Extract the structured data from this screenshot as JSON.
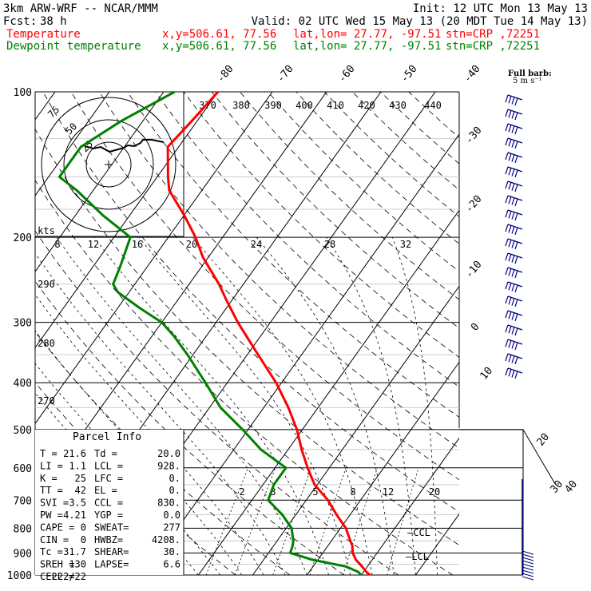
{
  "header": {
    "model": "3km ARW-WRF -- NCAR/MMM",
    "init": "Init: 12 UTC Mon 13 May 13",
    "fcst_label": "Fcst:",
    "fcst_value": "38 h",
    "valid": "Valid: 02 UTC Wed 15 May 13 (20 MDT Tue 14 May 13)",
    "temp_line": {
      "label": "Temperature",
      "xy": "x,y=506.61, 77.56",
      "latlon": "lat,lon= 27.77, -97.51",
      "stn": "stn=CRP ,72251"
    },
    "dew_line": {
      "label": "Dewpoint temperature",
      "xy": "x,y=506.61, 77.56",
      "latlon": "lat,lon= 27.77, -97.51",
      "stn": "stn=CRP ,72251"
    }
  },
  "wind_legend": {
    "line1": "Full barb:",
    "line2": "5 m s⁻¹"
  },
  "colors": {
    "temperature": "#ff0000",
    "dewpoint": "#008000",
    "isotherm": "#000000",
    "wind": "#000080",
    "hodograph": "#000000"
  },
  "hodograph": {
    "units": "kts",
    "ring_labels": [
      "75",
      "50",
      "25"
    ]
  },
  "parcel_info": {
    "title": "Parcel Info",
    "rows": [
      [
        "T   =",
        "21.6",
        "Td =",
        "20.0"
      ],
      [
        "LI  =",
        "1.1",
        "LCL =",
        "928."
      ],
      [
        "K   =",
        "25",
        "LFC =",
        "0."
      ],
      [
        "TT  =",
        "42",
        "EL  =",
        "0."
      ],
      [
        "SVI =",
        "3.5",
        "CCL =",
        "830."
      ],
      [
        "PW  =",
        "4.21",
        "YGP =",
        "0.0"
      ],
      [
        "CAPE =",
        "0",
        "SWEAT=",
        "277"
      ],
      [
        "CIN  =",
        "0",
        "HWBZ=",
        "4208."
      ],
      [
        "Tc  =",
        "31.7",
        "SHEAR=",
        "30."
      ],
      [
        "SREH =",
        "130",
        "LAPSE=",
        "6.6"
      ],
      [
        "CELL =",
        "222/22",
        "",
        ""
      ]
    ]
  },
  "chart_data": {
    "type": "line",
    "title": "",
    "y_axis": "pressure (hPa), log scale, reversed",
    "ylim": [
      1000,
      100
    ],
    "pressure_levels": [
      100,
      200,
      300,
      400,
      500,
      600,
      700,
      800,
      900,
      1000
    ],
    "isotherm_labels": [
      "-80",
      "-70",
      "-60",
      "-50",
      "-40",
      "-30",
      "-20",
      "-10",
      "0",
      "10",
      "20",
      "30",
      "40"
    ],
    "theta_e_labels": [
      "370",
      "380",
      "390",
      "400",
      "410",
      "420",
      "430",
      "440"
    ],
    "theta_labels": [
      "290",
      "280",
      "270"
    ],
    "mixing_ratio_labels": [
      "2",
      "3",
      "5",
      "8",
      "12",
      "20"
    ],
    "wind_speed_labels": [
      "8",
      "12",
      "16",
      "20",
      "24",
      "28",
      "32"
    ],
    "annotations": [
      "CCL",
      "LCL"
    ],
    "series": [
      {
        "name": "Temperature",
        "color": "#ff0000",
        "p": [
          1000,
          985,
          960,
          930,
          900,
          870,
          850,
          800,
          750,
          700,
          650,
          600,
          550,
          500,
          450,
          400,
          350,
          300,
          270,
          250,
          220,
          200,
          180,
          160,
          150,
          130,
          115,
          100
        ],
        "t": [
          21.6,
          20.5,
          19.0,
          17.0,
          15.5,
          14.5,
          13.5,
          11.0,
          7.5,
          4.0,
          -0.5,
          -4.0,
          -7.5,
          -11.0,
          -15.5,
          -21.0,
          -28.0,
          -36.0,
          -41.0,
          -44.5,
          -51.0,
          -55.0,
          -60.0,
          -66.0,
          -68.0,
          -72.0,
          -71.0,
          -70.0
        ]
      },
      {
        "name": "Dewpoint temperature",
        "color": "#008000",
        "p": [
          1000,
          985,
          960,
          930,
          900,
          870,
          850,
          800,
          750,
          700,
          650,
          600,
          550,
          500,
          450,
          400,
          350,
          320,
          300,
          280,
          260,
          250,
          230,
          200,
          180,
          160,
          150,
          130,
          115,
          100
        ],
        "t": [
          20.0,
          19.0,
          16.0,
          9.0,
          4.0,
          3.5,
          3.0,
          1.0,
          -2.5,
          -7.0,
          -8.0,
          -8.0,
          -15.0,
          -21.0,
          -28.0,
          -34.0,
          -41.0,
          -46.0,
          -50.0,
          -56.0,
          -62.0,
          -64.0,
          -65.0,
          -67.0,
          -75.0,
          -83.0,
          -88.0,
          -88.0,
          -84.0,
          -78.0
        ]
      }
    ]
  }
}
